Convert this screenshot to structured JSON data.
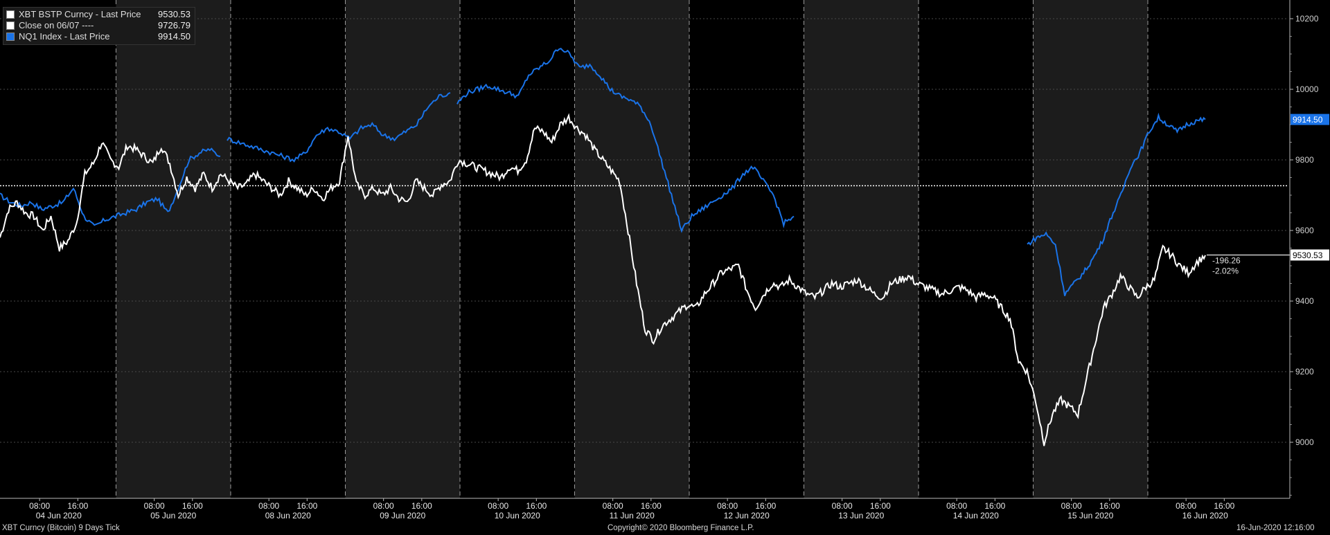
{
  "legend": {
    "items": [
      {
        "label": "XBT BSTP Curncy - Last Price",
        "value": "9530.53",
        "color": "#ffffff"
      },
      {
        "label": "Close on 06/07 ----",
        "value": "9726.79",
        "color": "#ffffff"
      },
      {
        "label": "NQ1 Index - Last Price",
        "value": "9914.50",
        "color": "#1a73e8"
      }
    ]
  },
  "footer": {
    "left": "XBT Curncy (Bitcoin) 9 Days  Tick",
    "center": "Copyright© 2020 Bloomberg Finance L.P.",
    "right": "16-Jun-2020 12:16:00"
  },
  "annotations": {
    "change": "-196.26",
    "change_pct": "-2.02%",
    "xbt_tag": "9530.53",
    "nq_tag": "9914.50"
  },
  "colors": {
    "background": "#000000",
    "shade": "#1c1c1c",
    "xbt": "#ffffff",
    "nq": "#1a73e8"
  },
  "chart_data": {
    "type": "line",
    "title": "",
    "ylim": [
      8800,
      10250
    ],
    "yticks": [
      9000,
      9200,
      9400,
      9600,
      9800,
      10000,
      10200
    ],
    "reference_line": {
      "label": "Close on 06/07",
      "value": 9726.79
    },
    "days": [
      {
        "label": "04 Jun 2020",
        "shaded": false
      },
      {
        "label": "05 Jun 2020",
        "shaded": true
      },
      {
        "label": "08 Jun 2020",
        "shaded": false
      },
      {
        "label": "09 Jun 2020",
        "shaded": true
      },
      {
        "label": "10 Jun 2020",
        "shaded": false
      },
      {
        "label": "11 Jun 2020",
        "shaded": true
      },
      {
        "label": "12 Jun 2020",
        "shaded": false
      },
      {
        "label": "13 Jun 2020",
        "shaded": true
      },
      {
        "label": "14 Jun 2020",
        "shaded": false
      },
      {
        "label": "15 Jun 2020",
        "shaded": true
      },
      {
        "label": "16 Jun 2020",
        "shaded": false
      }
    ],
    "hour_ticks": [
      "08:00",
      "16:00"
    ],
    "series": [
      {
        "name": "XBT BSTP Curncy - Last Price",
        "values": [
          9580,
          9660,
          9680,
          9650,
          9640,
          9600,
          9640,
          9550,
          9570,
          9620,
          9760,
          9790,
          9850,
          9800,
          9780,
          9840,
          9830,
          9810,
          9790,
          9840,
          9790,
          9700,
          9750,
          9720,
          9760,
          9720,
          9760,
          9740,
          9720,
          9730,
          9760,
          9740,
          9720,
          9700,
          9740,
          9720,
          9700,
          9720,
          9690,
          9720,
          9740,
          9870,
          9730,
          9700,
          9720,
          9700,
          9720,
          9690,
          9680,
          9740,
          9720,
          9700,
          9730,
          9740,
          9800,
          9790,
          9780,
          9770,
          9760,
          9750,
          9780,
          9770,
          9800,
          9890,
          9880,
          9850,
          9900,
          9920,
          9890,
          9870,
          9830,
          9800,
          9770,
          9740,
          9600,
          9450,
          9320,
          9290,
          9330,
          9350,
          9370,
          9390,
          9380,
          9420,
          9450,
          9480,
          9490,
          9500,
          9430,
          9380,
          9420,
          9450,
          9440,
          9460,
          9440,
          9420,
          9410,
          9430,
          9450,
          9440,
          9450,
          9460,
          9440,
          9420,
          9410,
          9450,
          9460,
          9470,
          9450,
          9440,
          9430,
          9420,
          9430,
          9440,
          9430,
          9410,
          9420,
          9410,
          9380,
          9350,
          9230,
          9200,
          9120,
          9000,
          9080,
          9120,
          9100,
          9080,
          9180,
          9280,
          9380,
          9420,
          9470,
          9440,
          9410,
          9440,
          9460,
          9550,
          9530,
          9500,
          9480,
          9510,
          9530
        ],
        "color": "#ffffff",
        "last": 9530.53
      },
      {
        "name": "NQ1 Index - Last Price",
        "segments": [
          [
            9700,
            9680,
            9670,
            9680,
            9660,
            9670,
            9680,
            9720,
            9640,
            9610,
            9630,
            9640,
            9650,
            9660,
            9680,
            9690,
            9650,
            9720,
            9800,
            9820,
            9830,
            9810
          ],
          [
            9860,
            9850,
            9840,
            9830,
            9820,
            9810,
            9800,
            9820,
            9870,
            9890,
            9880,
            9860,
            9890,
            9900,
            9870,
            9860,
            9880,
            9900,
            9950,
            9980,
            9990
          ],
          [
            9960,
            9990,
            10000,
            10010,
            10000,
            9990,
            9980,
            10040,
            10060,
            10080,
            10120,
            10100,
            10060,
            10070,
            10040,
            10000,
            9980,
            9970,
            9950,
            9900,
            9800,
            9700,
            9600,
            9640,
            9660,
            9680,
            9700,
            9720,
            9760,
            9780,
            9740,
            9700,
            9620,
            9640
          ],
          [
            9560,
            9580,
            9590,
            9560,
            9420,
            9450,
            9480,
            9520,
            9570,
            9640,
            9700,
            9780,
            9820,
            9880,
            9920,
            9900,
            9880,
            9900,
            9910,
            9914.5
          ]
        ],
        "color": "#1a73e8",
        "last": 9914.5
      }
    ]
  }
}
